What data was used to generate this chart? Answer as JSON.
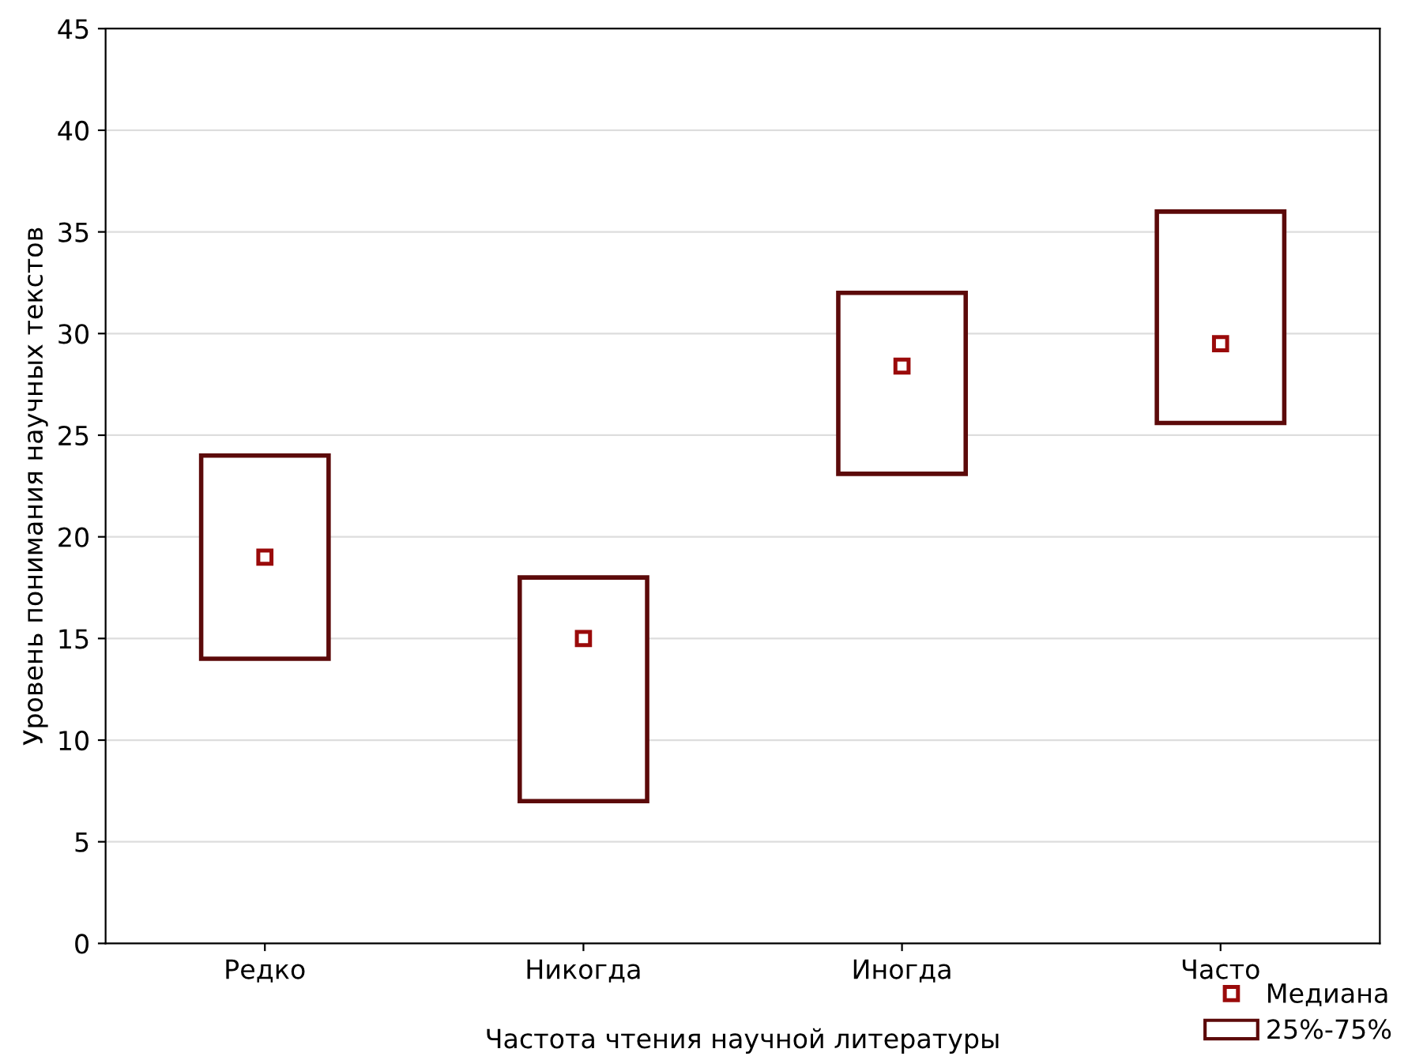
{
  "chart_data": {
    "type": "bar",
    "xlabel": "Частота чтения научной литературы",
    "ylabel": "Уровень понимания научных текстов",
    "categories": [
      "Редко",
      "Никогда",
      "Иногда",
      "Часто"
    ],
    "series": [
      {
        "name": "25%-75%",
        "type": "bar",
        "color": "#5c0a0a",
        "base": [
          14,
          7,
          23.1,
          25.6
        ],
        "values": [
          10,
          11,
          8.9,
          10.4
        ]
      },
      {
        "name": "Медиана",
        "type": "scatter",
        "color": "#9a0a0a",
        "marker": "square",
        "values": [
          19,
          15,
          28.4,
          29.5
        ]
      }
    ],
    "ylim": [
      0,
      45
    ],
    "yticks": [
      0,
      5,
      10,
      15,
      20,
      25,
      30,
      35,
      40,
      45
    ],
    "grid": "y",
    "legend": "bottom right"
  }
}
